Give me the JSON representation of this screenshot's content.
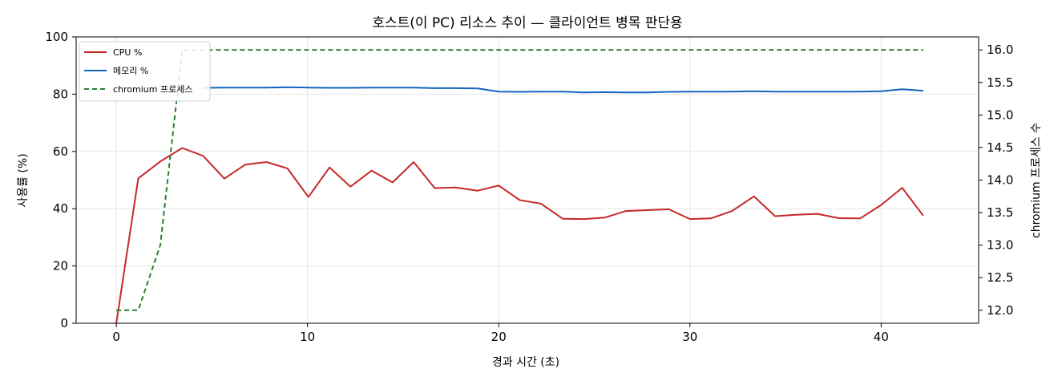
{
  "chart_data": {
    "type": "line",
    "title": "호스트(이 PC) 리소스 추이 — 클라이언트 병목 판단용",
    "xlabel": "경과 시간 (초)",
    "ylabel": "사용률 (%)",
    "y2label": "chromium 프로세스 수",
    "xlim": [
      -2.1,
      45.1
    ],
    "ylim": [
      0,
      100
    ],
    "y2lim": [
      11.8,
      16.2
    ],
    "xticks": [
      "0",
      "10",
      "20",
      "30",
      "40"
    ],
    "yticks": [
      "0",
      "20",
      "40",
      "60",
      "80",
      "100"
    ],
    "y2ticks": [
      "12.0",
      "12.5",
      "13.0",
      "13.5",
      "14.0",
      "14.5",
      "15.0",
      "15.5",
      "16.0"
    ],
    "grid": true,
    "legend_position": "upper-left",
    "x": [
      0,
      1.15,
      2.3,
      3.45,
      4.55,
      5.65,
      6.75,
      7.85,
      8.95,
      10.05,
      11.15,
      12.25,
      13.35,
      14.45,
      15.55,
      16.65,
      17.75,
      18.9,
      20.0,
      21.1,
      22.2,
      23.35,
      24.45,
      25.55,
      26.65,
      27.75,
      28.9,
      30.0,
      31.1,
      32.2,
      33.35,
      34.45,
      35.55,
      36.65,
      37.8,
      38.9,
      40.0,
      41.1,
      42.2
    ],
    "series": [
      {
        "name": "CPU %",
        "axis": "left",
        "color": "#c62828",
        "style": "solid",
        "values": [
          0,
          50.6,
          56.5,
          61.2,
          58.4,
          50.5,
          55.4,
          56.3,
          54.1,
          44.1,
          54.4,
          47.7,
          53.3,
          49.2,
          56.3,
          47.2,
          47.4,
          46.3,
          48.1,
          43.0,
          41.8,
          36.5,
          36.4,
          36.9,
          39.2,
          39.5,
          39.8,
          36.4,
          36.6,
          39.2,
          44.3,
          37.4,
          37.9,
          38.2,
          36.7,
          36.6,
          41.3,
          47.3,
          37.6
        ]
      },
      {
        "name": "메모리 %",
        "axis": "left",
        "color": "#1565c0",
        "style": "solid",
        "values": [
          null,
          null,
          null,
          null,
          82.2,
          82.3,
          82.3,
          82.3,
          82.4,
          82.3,
          82.2,
          82.2,
          82.3,
          82.3,
          82.3,
          82.1,
          82.1,
          82.0,
          80.9,
          80.8,
          80.9,
          80.9,
          80.6,
          80.7,
          80.6,
          80.6,
          80.8,
          80.9,
          80.9,
          80.9,
          81.0,
          80.9,
          80.9,
          80.9,
          80.9,
          80.9,
          81.0,
          81.7,
          81.2
        ]
      },
      {
        "name": "chromium 프로세스",
        "axis": "right",
        "color": "#2e7d32",
        "style": "dashed",
        "values": [
          12,
          12,
          13,
          16,
          16,
          16,
          16,
          16,
          16,
          16,
          16,
          16,
          16,
          16,
          16,
          16,
          16,
          16,
          16,
          16,
          16,
          16,
          16,
          16,
          16,
          16,
          16,
          16,
          16,
          16,
          16,
          16,
          16,
          16,
          16,
          16,
          16,
          16,
          16
        ]
      }
    ]
  }
}
